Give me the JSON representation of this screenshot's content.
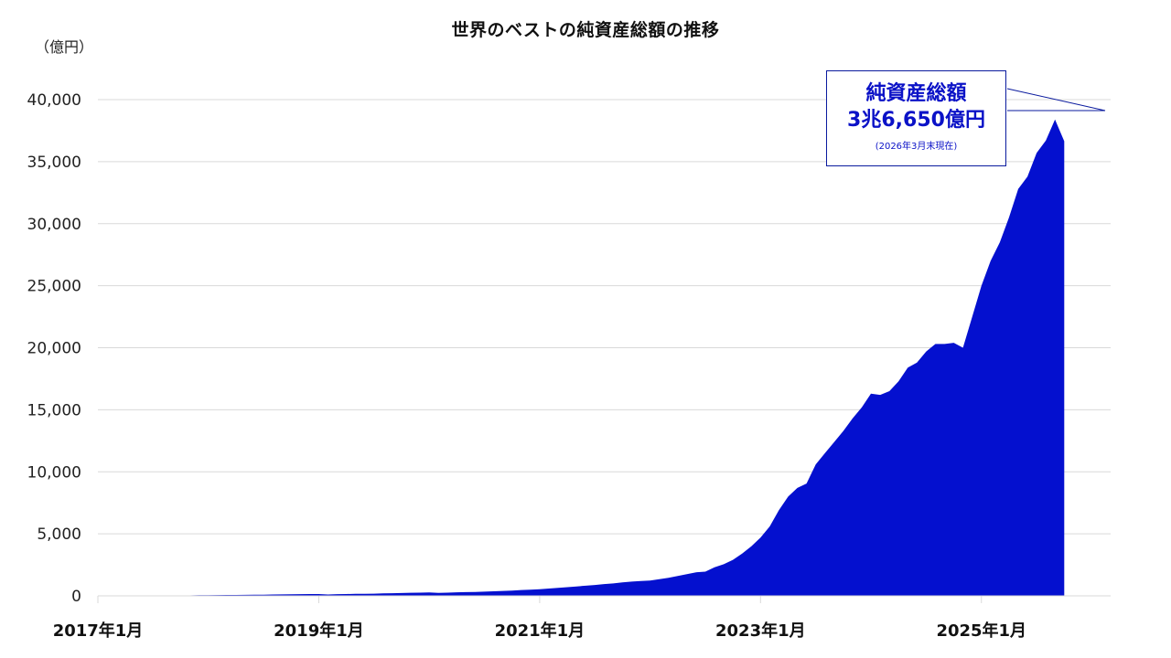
{
  "header": {
    "title": "世界のベストの純資産総額の推移",
    "unit_label": "（億円）"
  },
  "callout": {
    "line1": "純資産総額",
    "line2": "3兆6,650億円",
    "line3": "(2026年3月末現在)"
  },
  "colors": {
    "fill": "#0410cf",
    "grid": "#d9d9d9",
    "callout_text": "#0b12c7",
    "callout_border": "#0a1a9e"
  },
  "chart_data": {
    "type": "area",
    "title": "世界のベストの純資産総額の推移",
    "xlabel": "",
    "ylabel": "（億円）",
    "ylim": [
      0,
      40000
    ],
    "yticks": [
      0,
      5000,
      10000,
      15000,
      20000,
      25000,
      30000,
      35000,
      40000
    ],
    "ytick_labels": [
      "0",
      "5,000",
      "10,000",
      "15,000",
      "20,000",
      "25,000",
      "30,000",
      "35,000",
      "40,000"
    ],
    "xtick_labels": [
      "2017年1月",
      "2019年1月",
      "2021年1月",
      "2023年1月",
      "2025年1月"
    ],
    "xtick_months": [
      0,
      24,
      48,
      72,
      96
    ],
    "x_start": "2017-01",
    "grid": true,
    "legend": null,
    "annotation": "純資産総額 3兆6,650億円 (2026年3月末現在)",
    "series": [
      {
        "name": "純資産総額",
        "start_month_index": 10,
        "values": [
          40,
          50,
          60,
          65,
          70,
          75,
          80,
          85,
          95,
          110,
          120,
          130,
          140,
          150,
          150,
          110,
          140,
          150,
          160,
          170,
          180,
          200,
          210,
          230,
          250,
          260,
          270,
          240,
          260,
          290,
          300,
          320,
          340,
          370,
          400,
          430,
          470,
          500,
          540,
          590,
          650,
          700,
          760,
          820,
          880,
          950,
          1000,
          1080,
          1150,
          1200,
          1230,
          1350,
          1450,
          1600,
          1750,
          1900,
          1950,
          2300,
          2550,
          2900,
          3400,
          4000,
          4700,
          5600,
          6900,
          8000,
          8700,
          9050,
          10600,
          11500,
          12400,
          13300,
          14300,
          15200,
          16300,
          16200,
          16500,
          17300,
          18400,
          18800,
          19700,
          20300,
          20300,
          20400,
          20000,
          22500,
          25000,
          27000,
          28500,
          30500,
          32800,
          33800,
          35700,
          36700,
          38400,
          36650
        ]
      }
    ]
  }
}
